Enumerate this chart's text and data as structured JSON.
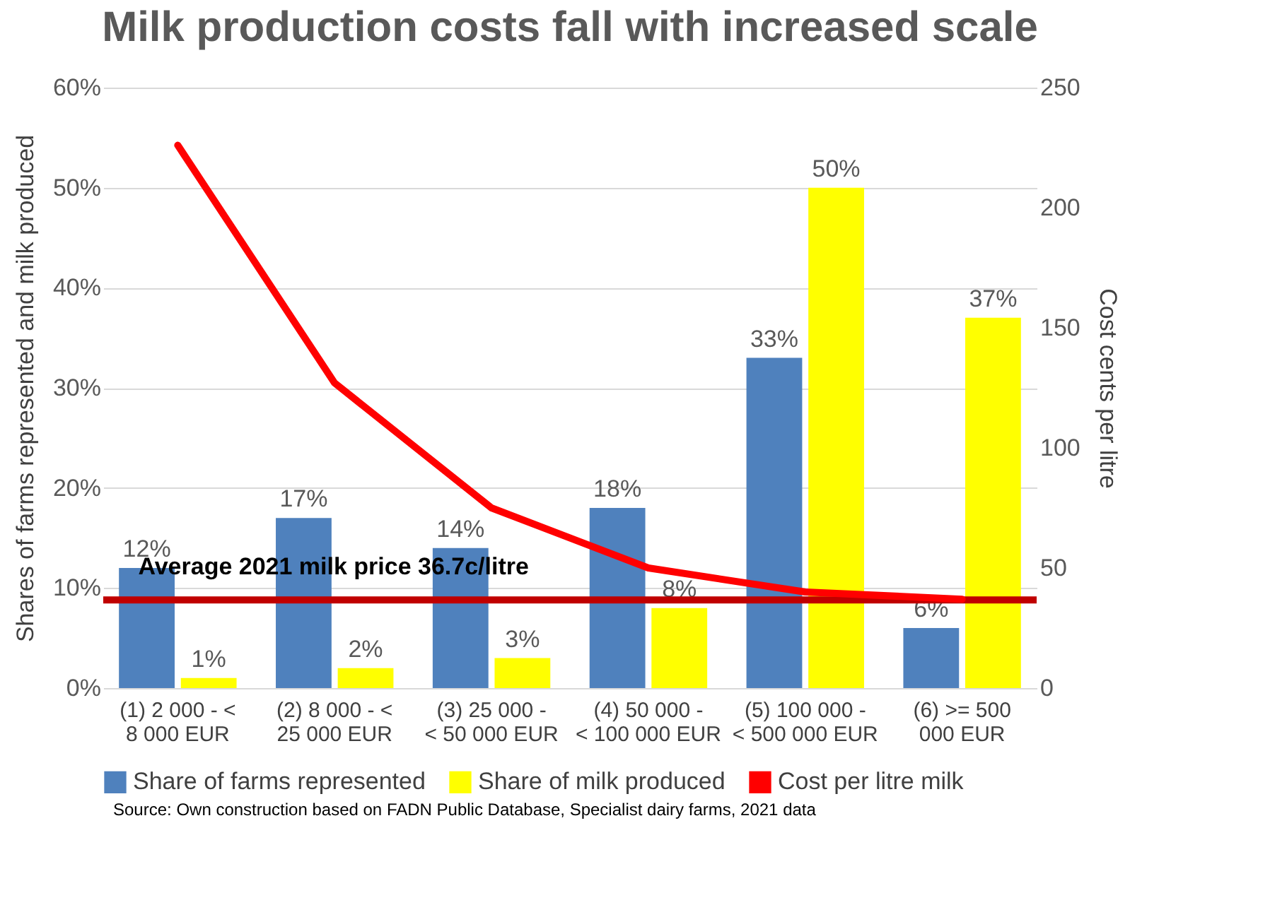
{
  "chart_data": {
    "type": "bar",
    "title": "Milk production costs fall with increased scale",
    "categories": [
      "(1) 2 000 - < 8 000 EUR",
      "(2) 8 000 - < 25 000 EUR",
      "(3) 25 000 - < 50 000 EUR",
      "(4) 50 000 - < 100 000 EUR",
      "(5) 100 000 - < 500 000 EUR",
      "(6) >= 500 000 EUR"
    ],
    "series": [
      {
        "name": "Share of farms represented",
        "color": "#4f81bd",
        "values": [
          12,
          17,
          14,
          18,
          33,
          6
        ],
        "value_labels": [
          "12%",
          "17%",
          "14%",
          "18%",
          "33%",
          "6%"
        ]
      },
      {
        "name": "Share of milk produced",
        "color": "#ffff00",
        "values": [
          1,
          2,
          3,
          8,
          50,
          37
        ],
        "value_labels": [
          "1%",
          "2%",
          "3%",
          "8%",
          "50%",
          "37%"
        ]
      },
      {
        "name": "Cost per litre milk",
        "type": "line",
        "axis": "y2",
        "color": "#ff0000",
        "values": [
          226,
          127,
          75,
          50,
          40,
          37
        ]
      }
    ],
    "ylabel": "Shares of farms represented and milk produced",
    "y2label": "Cost cents per litre",
    "ylim": [
      0,
      60
    ],
    "yticks": [
      {
        "value": 0,
        "label": "0%"
      },
      {
        "value": 10,
        "label": "10%"
      },
      {
        "value": 20,
        "label": "20%"
      },
      {
        "value": 30,
        "label": "30%"
      },
      {
        "value": 40,
        "label": "40%"
      },
      {
        "value": 50,
        "label": "50%"
      },
      {
        "value": 60,
        "label": "60%"
      }
    ],
    "y2lim": [
      0,
      250
    ],
    "y2ticks": [
      0,
      50,
      100,
      150,
      200,
      250
    ],
    "ref_lines": [
      {
        "axis": "y2",
        "value": 36.7,
        "label": "Average 2021 milk price 36.7c/litre",
        "color": "#c00000"
      }
    ],
    "grid": "y",
    "legend": "bottom",
    "annotations": [
      "Source: Own construction based on FADN Public Database, Specialist dairy farms, 2021 data"
    ]
  }
}
